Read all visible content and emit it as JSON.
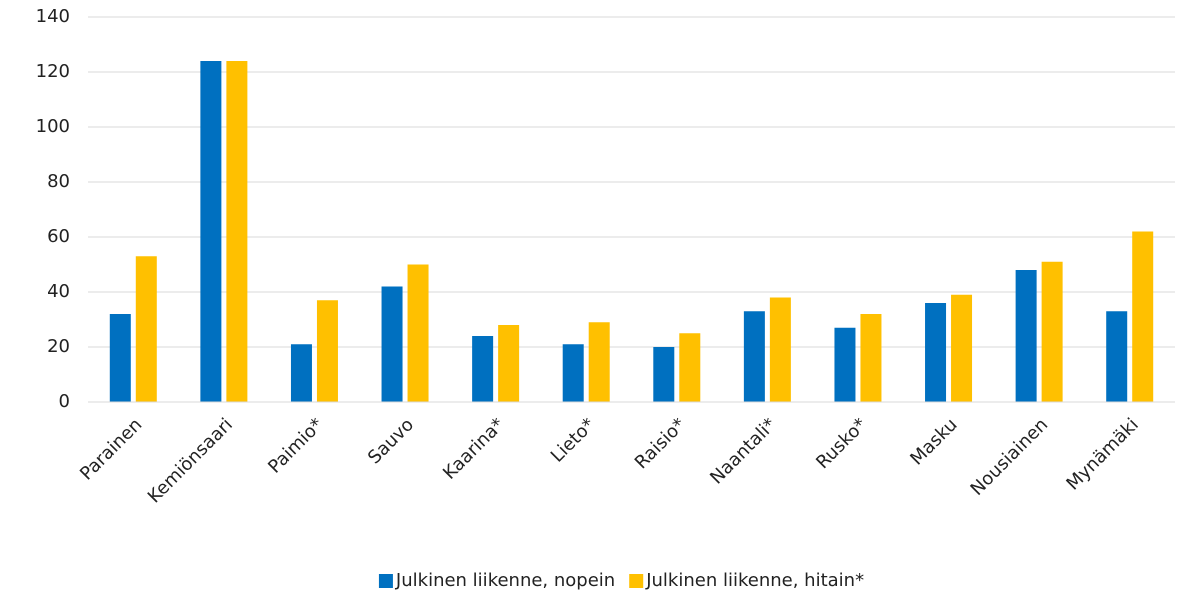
{
  "chart_data": {
    "type": "bar",
    "categories": [
      "Parainen",
      "Kemiönsaari",
      "Paimio*",
      "Sauvo",
      "Kaarina*",
      "Lieto*",
      "Raisio*",
      "Naantali*",
      "Rusko*",
      "Masku",
      "Nousiainen",
      "Mynämäki"
    ],
    "series": [
      {
        "name": "Julkinen liikenne, nopein",
        "color": "#0070c0",
        "values": [
          32,
          124,
          21,
          42,
          24,
          21,
          20,
          33,
          27,
          36,
          48,
          33
        ]
      },
      {
        "name": "Julkinen liikenne, hitain*",
        "color": "#ffc000",
        "values": [
          53,
          124,
          37,
          50,
          28,
          29,
          25,
          38,
          32,
          39,
          51,
          62
        ]
      }
    ],
    "ylim": [
      0,
      140
    ],
    "yticks": [
      0,
      20,
      40,
      60,
      80,
      100,
      120,
      140
    ],
    "grid": true,
    "legend": "bottom"
  }
}
